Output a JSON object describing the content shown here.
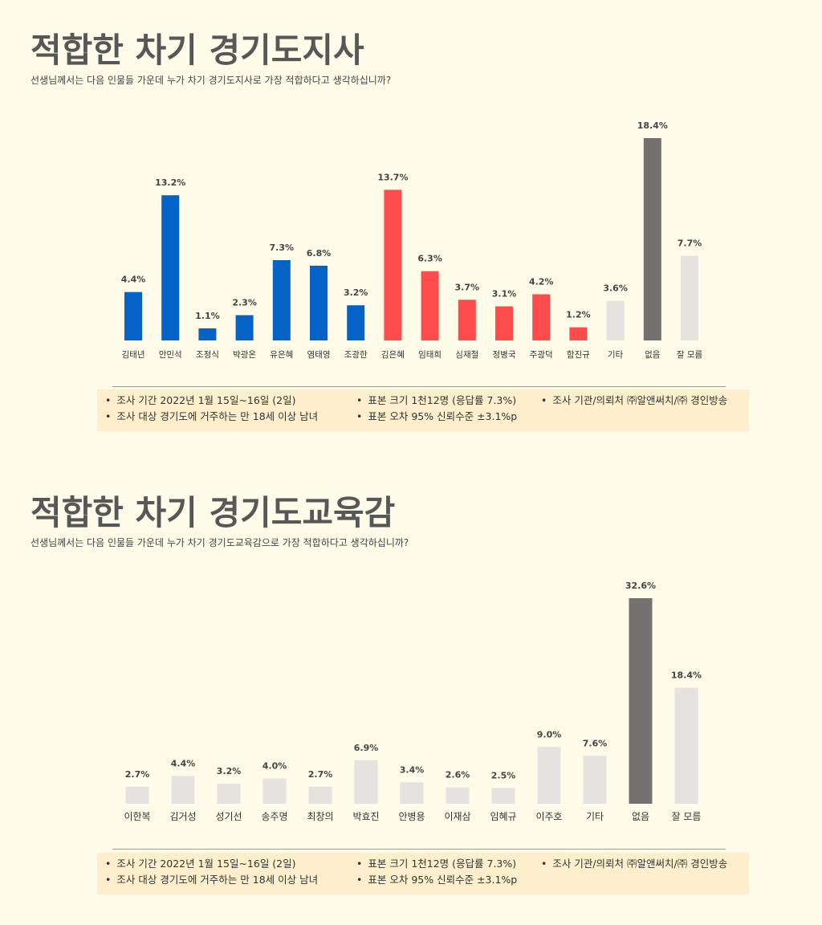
{
  "sections": [
    {
      "title": "적합한 차기 경기도지사",
      "subtitle": "선생님께서는 다음 인물들 가운데 누가 차기 경기도지사로 가장 적합하다고 생각하십니까?",
      "notes": {
        "period": "조사 기간 2022년 1월 15일~16일 (2일)",
        "target": "조사 대상 경기도에 거주하는 만 18세 이상 남녀",
        "sample": "표본 크기 1천12명 (응답률 7.3%)",
        "error": "표본 오차 95% 신뢰수준 ±3.1%p",
        "agency": "조사 기관/의뢰처 ㈜알앤써치/㈜ 경인방송"
      }
    },
    {
      "title": "적합한 차기 경기도교육감",
      "subtitle": "선생님께서는 다음 인물들 가운데 누가 차기 경기도교육감으로 가장 적합하다고 생각하십니까?",
      "notes": {
        "period": "조사 기간 2022년 1월 15일~16일 (2일)",
        "target": "조사 대상 경기도에 거주하는 만 18세 이상 남녀",
        "sample": "표본 크기 1천12명 (응답률 7.3%)",
        "error": "표본 오차 95% 신뢰수준 ±3.1%p",
        "agency": "조사 기관/의뢰처 ㈜알앤써치/㈜ 경인방송"
      }
    }
  ],
  "chart_data": [
    {
      "type": "bar",
      "title": "적합한 차기 경기도지사",
      "unit": "%",
      "categories": [
        "김태년",
        "안민석",
        "조정식",
        "박광온",
        "유은혜",
        "염태영",
        "조광한",
        "김은혜",
        "임태희",
        "심재철",
        "정병국",
        "주광덕",
        "함진규",
        "기타",
        "없음",
        "잘 모름"
      ],
      "values": [
        4.4,
        13.2,
        1.1,
        2.3,
        7.3,
        6.8,
        3.2,
        13.7,
        6.3,
        3.7,
        3.1,
        4.2,
        1.2,
        3.6,
        18.4,
        7.7
      ],
      "colors": [
        "#0563c8",
        "#0563c8",
        "#0563c8",
        "#0563c8",
        "#0563c8",
        "#0563c8",
        "#0563c8",
        "#fe4b4b",
        "#fe4b4b",
        "#fe4b4b",
        "#fe4b4b",
        "#fe4b4b",
        "#fe4b4b",
        "#e6e2df",
        "#767171",
        "#e6e2df"
      ],
      "ylim": [
        0,
        18.4
      ]
    },
    {
      "type": "bar",
      "title": "적합한 차기 경기도교육감",
      "unit": "%",
      "categories": [
        "이한복",
        "김거성",
        "성기선",
        "송주명",
        "최창의",
        "박효진",
        "안병용",
        "이재삼",
        "임혜규",
        "이주호",
        "기타",
        "없음",
        "잘 모름"
      ],
      "values": [
        2.7,
        4.4,
        3.2,
        4.0,
        2.7,
        6.9,
        3.4,
        2.6,
        2.5,
        9.0,
        7.6,
        32.6,
        18.4
      ],
      "colors": [
        "#e6e2df",
        "#e6e2df",
        "#e6e2df",
        "#e6e2df",
        "#e6e2df",
        "#e6e2df",
        "#e6e2df",
        "#e6e2df",
        "#e6e2df",
        "#e6e2df",
        "#e6e2df",
        "#767171",
        "#e6e2df"
      ],
      "ylim": [
        0,
        32.6
      ]
    }
  ]
}
